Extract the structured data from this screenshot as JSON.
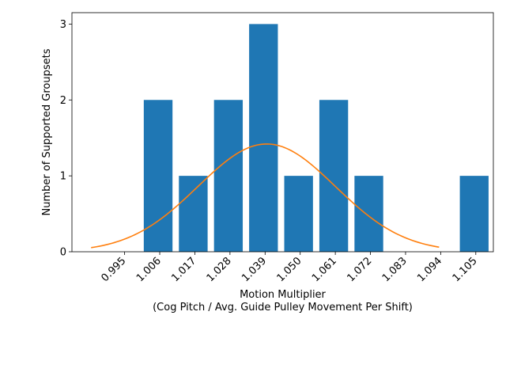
{
  "chart_data": {
    "type": "bar",
    "title": "",
    "xlabel_lines": [
      "Motion Multiplier",
      "(Cog Pitch / Avg. Guide Pulley Movement Per Shift)"
    ],
    "ylabel": "Number of Supported Groupsets",
    "x_ticks": [
      "0.995",
      "1.006",
      "1.017",
      "1.028",
      "1.039",
      "1.050",
      "1.061",
      "1.072",
      "1.083",
      "1.094",
      "1.105"
    ],
    "y_ticks": [
      "0",
      "1",
      "2",
      "3"
    ],
    "xlim": [
      0.9785,
      1.1105
    ],
    "ylim": [
      0,
      3.15
    ],
    "bar_color": "#1f77b4",
    "curve_color": "#ff7f0e",
    "bars": [
      {
        "x": 1.0055,
        "value": 2
      },
      {
        "x": 1.0165,
        "value": 1
      },
      {
        "x": 1.0275,
        "value": 2
      },
      {
        "x": 1.0385,
        "value": 3
      },
      {
        "x": 1.0495,
        "value": 1
      },
      {
        "x": 1.0605,
        "value": 2
      },
      {
        "x": 1.0715,
        "value": 1
      },
      {
        "x": 1.1045,
        "value": 1
      }
    ],
    "bar_width": 0.009,
    "curve": {
      "type": "normal-fit",
      "x_range": [
        0.9845,
        1.0935
      ],
      "mean": 1.0395,
      "peak": 1.42,
      "sigma": 0.0215
    }
  }
}
